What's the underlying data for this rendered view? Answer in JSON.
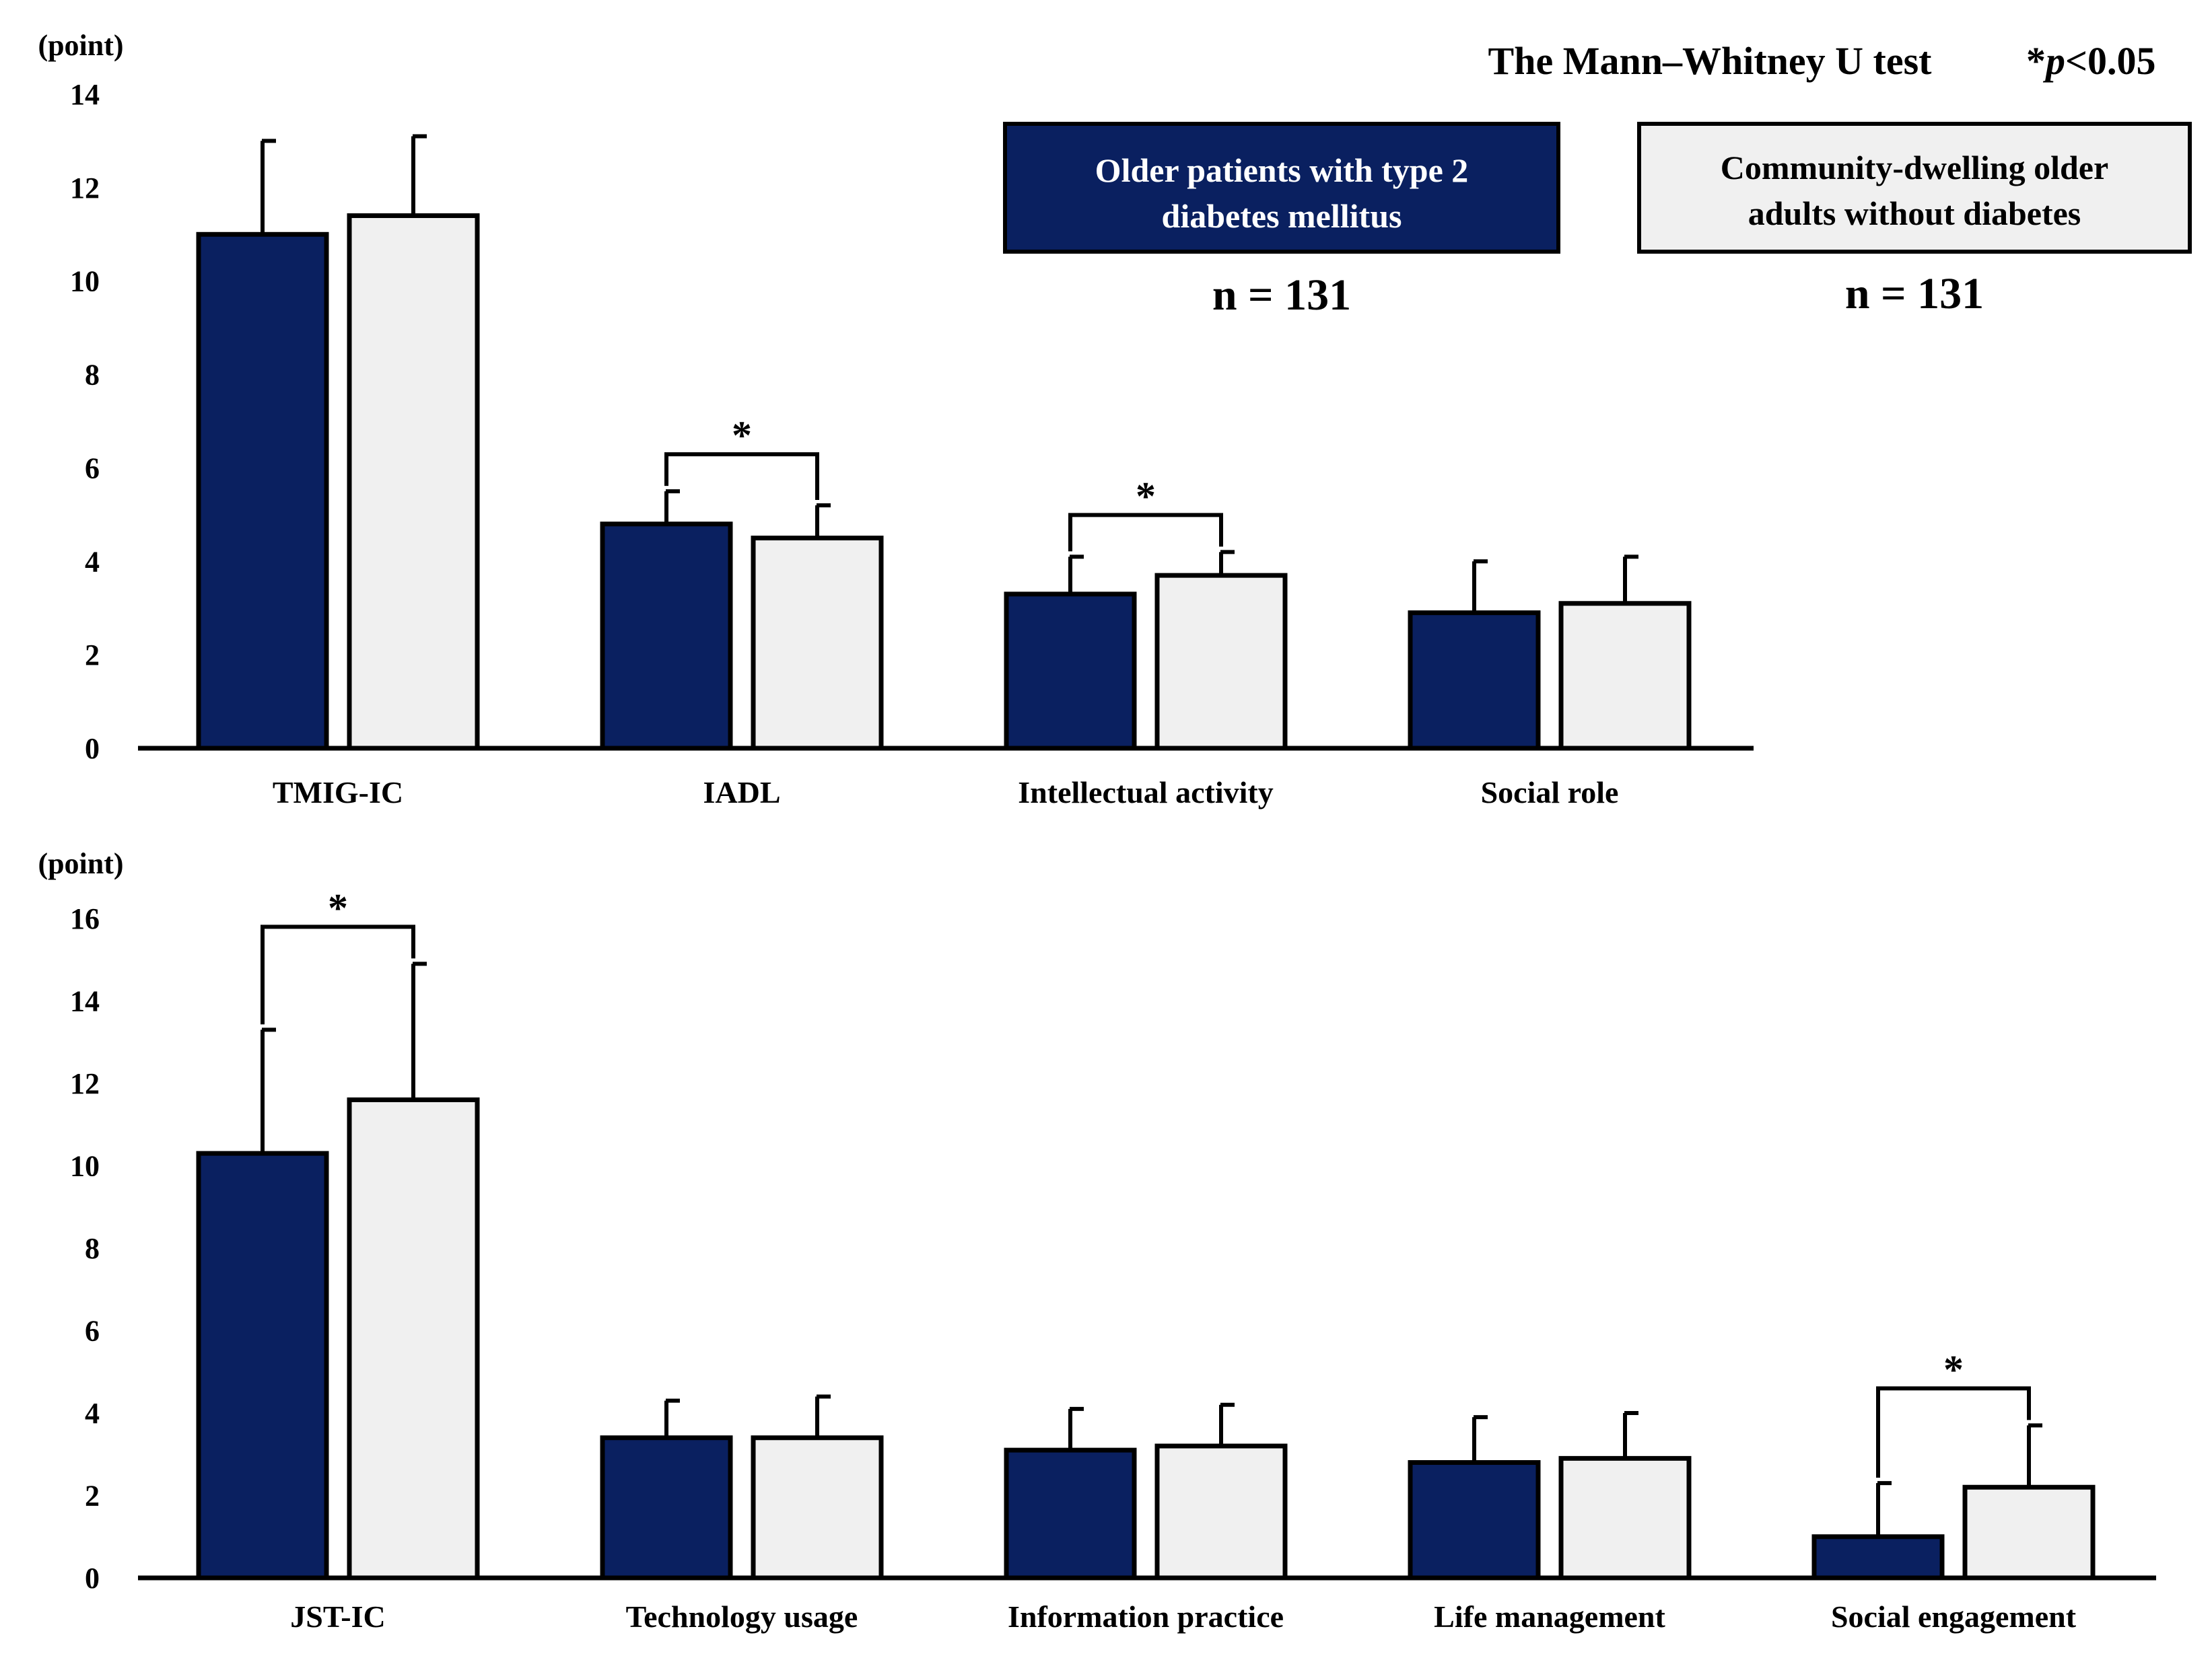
{
  "header": {
    "test_label": "The Mann–Whitney U test",
    "sig_star": "*",
    "sig_p": "p",
    "sig_threshold": "<0.05"
  },
  "legend": {
    "series1_line1": "Older patients with type 2",
    "series1_line2": "diabetes mellitus",
    "series1_n": "n = 131",
    "series2_line1": "Community-dwelling older",
    "series2_line2": "adults without diabetes",
    "series2_n": "n = 131"
  },
  "colors": {
    "series1": "#0a2060",
    "series2": "#f0f0f0",
    "outline": "#000000"
  },
  "chart_data": [
    {
      "type": "bar",
      "ylabel": "(point)",
      "ylim": [
        0,
        14
      ],
      "yticks": [
        0,
        2,
        4,
        6,
        8,
        10,
        12,
        14
      ],
      "categories": [
        "TMIG-IC",
        "IADL",
        "Intellectual activity",
        "Social role"
      ],
      "series": [
        {
          "name": "Older patients with type 2 diabetes mellitus",
          "values": [
            11.0,
            4.8,
            3.3,
            2.9
          ],
          "sd": [
            2.0,
            0.7,
            0.8,
            1.1
          ]
        },
        {
          "name": "Community-dwelling older adults without diabetes",
          "values": [
            11.4,
            4.5,
            3.7,
            3.1
          ],
          "sd": [
            1.7,
            0.7,
            0.5,
            1.0
          ]
        }
      ],
      "significant": [
        false,
        true,
        true,
        false
      ],
      "significance_marker": "*"
    },
    {
      "type": "bar",
      "ylabel": "(point)",
      "ylim": [
        0,
        16
      ],
      "yticks": [
        0,
        2,
        4,
        6,
        8,
        10,
        12,
        14,
        16
      ],
      "categories": [
        "JST-IC",
        "Technology usage",
        "Information practice",
        "Life management",
        "Social engagement"
      ],
      "series": [
        {
          "name": "Older patients with type 2 diabetes mellitus",
          "values": [
            10.3,
            3.4,
            3.1,
            2.8,
            1.0
          ],
          "sd": [
            3.0,
            0.9,
            1.0,
            1.1,
            1.3
          ]
        },
        {
          "name": "Community-dwelling older adults without diabetes",
          "values": [
            11.6,
            3.4,
            3.2,
            2.9,
            2.2
          ],
          "sd": [
            3.3,
            1.0,
            1.0,
            1.1,
            1.5
          ]
        }
      ],
      "significant": [
        true,
        false,
        false,
        false,
        true
      ],
      "significance_marker": "*"
    }
  ]
}
